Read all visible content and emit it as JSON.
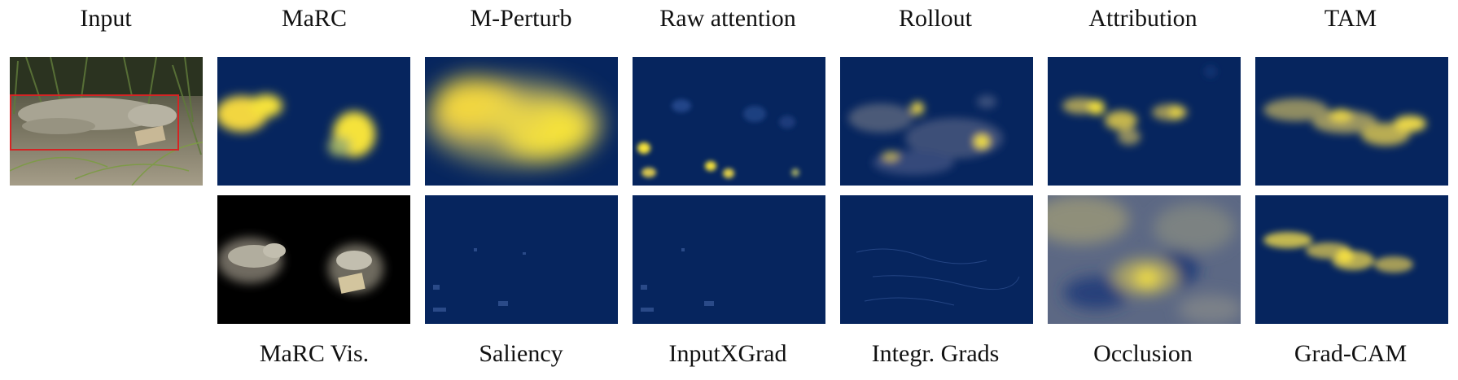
{
  "figure": {
    "top_labels": [
      "Input",
      "MaRC",
      "M-Perturb",
      "Raw attention",
      "Rollout",
      "Attribution",
      "TAM"
    ],
    "bottom_labels": [
      "MaRC Vis.",
      "Saliency",
      "InputXGrad",
      "Integr. Grads",
      "Occlusion",
      "Grad-CAM"
    ]
  },
  "colors": {
    "heatmap_low": "#06255e",
    "heatmap_high": "#f5e23a",
    "bbox": "#d42424"
  }
}
